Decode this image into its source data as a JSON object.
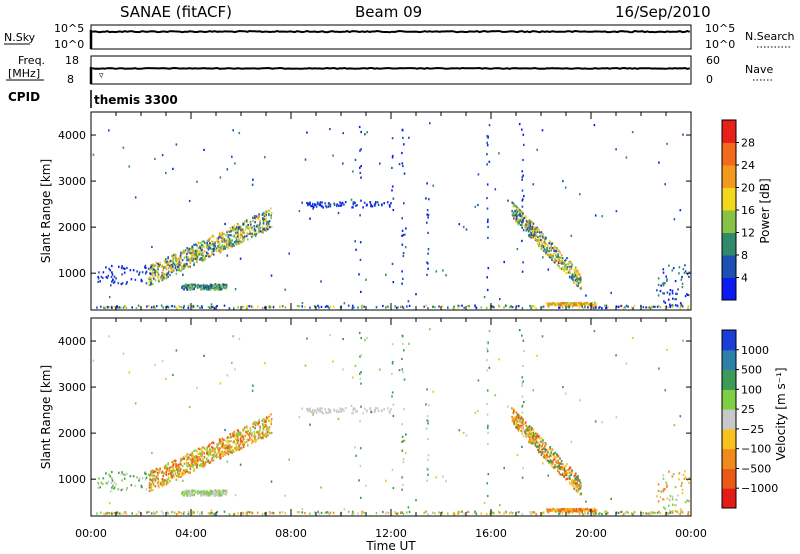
{
  "header": {
    "station": "SANAE (fitACF)",
    "beam": "Beam 09",
    "date": "16/Sep/2010"
  },
  "top_panels": {
    "nsky_label": "N.Sky",
    "nsearch_label": "N.Search",
    "nsky_ticks": [
      "10^5",
      "10^0"
    ],
    "nsearch_ticks": [
      "10^5",
      "10^0"
    ],
    "freq_label_1": "Freq.",
    "freq_label_2": "[MHz]",
    "freq_ticks": [
      "18",
      "8"
    ],
    "nave_label": "Nave",
    "nave_ticks": [
      "60",
      "0"
    ],
    "cpid_label": "CPID",
    "cpid_value": "themis 3300"
  },
  "chart_data": [
    {
      "type": "heatmap",
      "name": "power",
      "ylabel": "Slant Range [km]",
      "xlabel": "",
      "x_ticks": [
        "00:00",
        "04:00",
        "08:00",
        "12:00",
        "16:00",
        "20:00",
        "00:00"
      ],
      "y_ticks": [
        1000,
        2000,
        3000,
        4000
      ],
      "ylim": [
        200,
        4500
      ],
      "xlim_hours": [
        0,
        24
      ],
      "colorbar": {
        "label": "Power [dB]",
        "ticks": [
          "4",
          "8",
          "12",
          "16",
          "20",
          "24",
          "28"
        ],
        "colors": [
          "#0a1cf2",
          "#1d4fb5",
          "#2f8a6b",
          "#86c245",
          "#f1d81c",
          "#f39a1c",
          "#f16b1a",
          "#e8201a"
        ]
      }
    },
    {
      "type": "heatmap",
      "name": "velocity",
      "ylabel": "Slant Range [km]",
      "xlabel": "Time UT",
      "x_ticks": [
        "00:00",
        "04:00",
        "08:00",
        "12:00",
        "16:00",
        "20:00",
        "00:00"
      ],
      "y_ticks": [
        1000,
        2000,
        3000,
        4000
      ],
      "ylim": [
        200,
        4500
      ],
      "xlim_hours": [
        0,
        24
      ],
      "colorbar": {
        "label": "Velocity [m s⁻¹]",
        "ticks": [
          "1000",
          "500",
          "100",
          "25",
          "−25",
          "−100",
          "−500",
          "−1000"
        ],
        "colors": [
          "#1a3fd6",
          "#2c7fa8",
          "#3b9b57",
          "#7fcf44",
          "#c8c8c8",
          "#f6c21f",
          "#f08a1a",
          "#ea5a16",
          "#e51b16"
        ]
      }
    }
  ]
}
